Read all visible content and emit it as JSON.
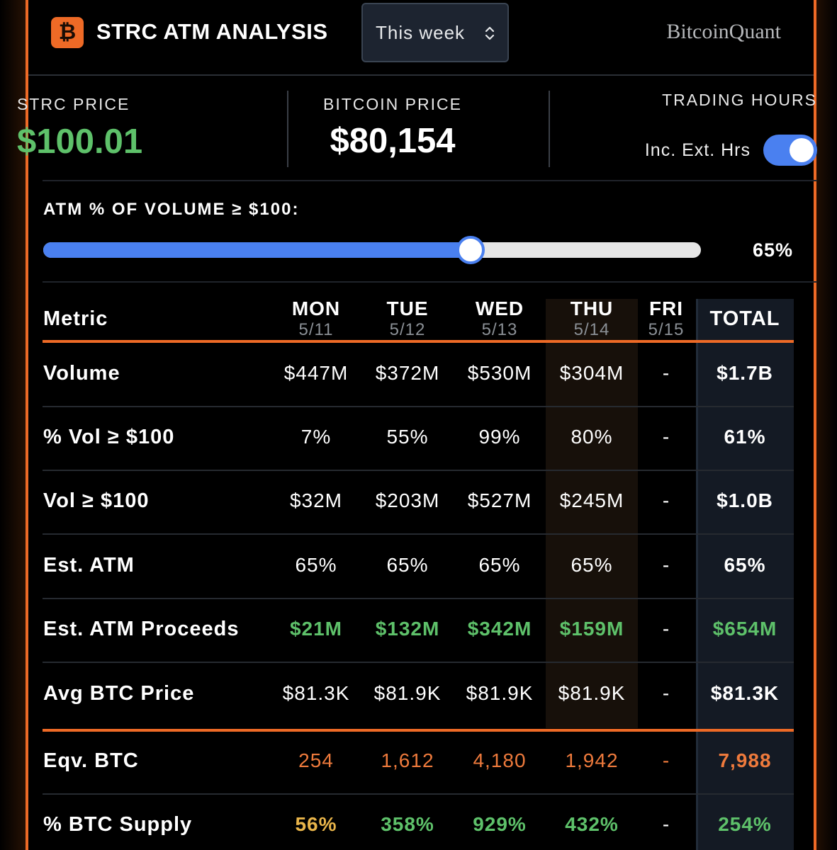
{
  "header": {
    "logo_glyph": "₿",
    "title": "STRC ATM ANALYSIS",
    "period": "This week",
    "brand": "BitcoinQuant"
  },
  "prices": {
    "strc_label": "STRC PRICE",
    "strc_value": "$100.01",
    "btc_label": "BITCOIN PRICE",
    "btc_value": "$80,154",
    "hours_label": "TRADING HOURS",
    "toggle_label": "Inc. Ext. Hrs",
    "toggle_on": true
  },
  "slider": {
    "title": "ATM % OF VOLUME ≥ $100:",
    "value_text": "65%",
    "value": 0.65
  },
  "table": {
    "metric_header": "Metric",
    "total_header": "TOTAL",
    "days": [
      {
        "day": "MON",
        "date": "5/11"
      },
      {
        "day": "TUE",
        "date": "5/12"
      },
      {
        "day": "WED",
        "date": "5/13"
      },
      {
        "day": "THU",
        "date": "5/14"
      },
      {
        "day": "FRI",
        "date": "5/15"
      }
    ],
    "rows": [
      {
        "label": "Volume",
        "values": [
          "$447M",
          "$372M",
          "$530M",
          "$304M",
          "-"
        ],
        "total": "$1.7B"
      },
      {
        "label": "% Vol ≥ $100",
        "values": [
          "7%",
          "55%",
          "99%",
          "80%",
          "-"
        ],
        "total": "61%"
      },
      {
        "label": "Vol ≥ $100",
        "values": [
          "$32M",
          "$203M",
          "$527M",
          "$245M",
          "-"
        ],
        "total": "$1.0B"
      },
      {
        "label": "Est. ATM",
        "values": [
          "65%",
          "65%",
          "65%",
          "65%",
          "-"
        ],
        "total": "65%"
      },
      {
        "label": "Est. ATM Proceeds",
        "values": [
          "$21M",
          "$132M",
          "$342M",
          "$159M",
          "-"
        ],
        "total": "$654M"
      },
      {
        "label": "Avg BTC Price",
        "values": [
          "$81.3K",
          "$81.9K",
          "$81.9K",
          "$81.9K",
          "-"
        ],
        "total": "$81.3K"
      },
      {
        "label": "Eqv. BTC",
        "values": [
          "254",
          "1,612",
          "4,180",
          "1,942",
          "-"
        ],
        "total": "7,988"
      },
      {
        "label": "% BTC Supply",
        "values": [
          "56%",
          "358%",
          "929%",
          "432%",
          "-"
        ],
        "total": "254%"
      }
    ]
  },
  "colors": {
    "accent": "#ee6a26",
    "green": "#5ec16a",
    "blue": "#4a80f0",
    "yellow": "#e9b54a"
  }
}
